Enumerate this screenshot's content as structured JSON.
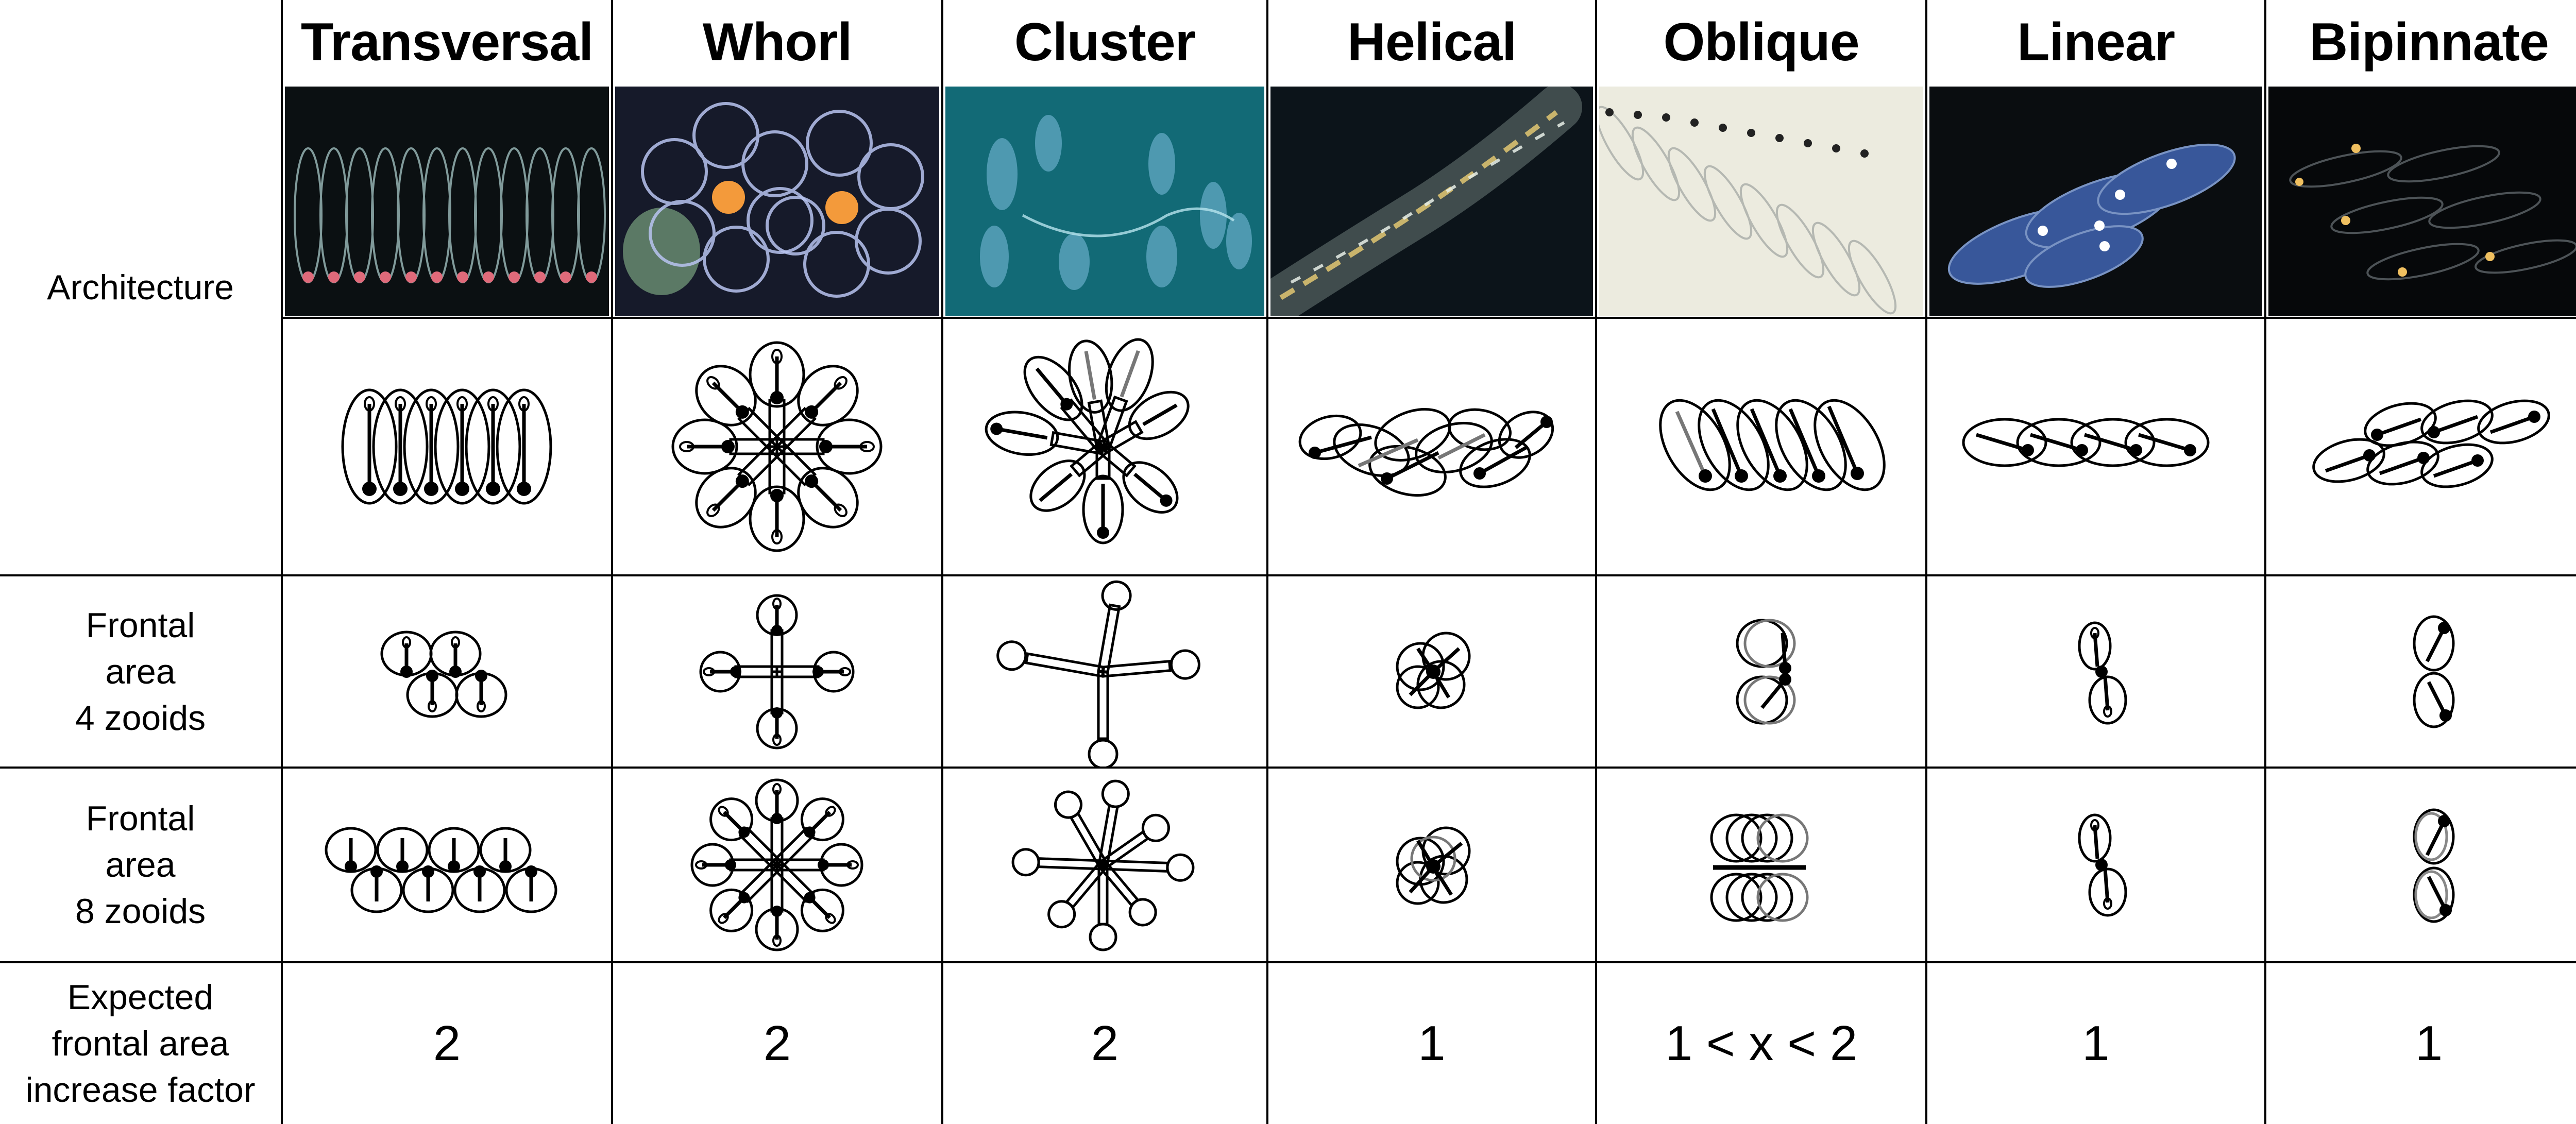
{
  "columns": [
    {
      "header": "Transversal",
      "factor": "2"
    },
    {
      "header": "Whorl",
      "factor": "2"
    },
    {
      "header": "Cluster",
      "factor": "2"
    },
    {
      "header": "Helical",
      "factor": "1"
    },
    {
      "header": "Oblique",
      "factor": "1 < x < 2"
    },
    {
      "header": "Linear",
      "factor": "1"
    },
    {
      "header": "Bipinnate",
      "factor": "1"
    }
  ],
  "rows": {
    "architecture": [
      "Architecture"
    ],
    "frontal4": [
      "Frontal",
      "area",
      "4 zooids"
    ],
    "frontal8": [
      "Frontal",
      "area",
      "8 zooids"
    ],
    "factor": [
      "Expected",
      "frontal area",
      "increase factor"
    ]
  },
  "photo_backgrounds": [
    "#0b1012",
    "#161a2a",
    "#126a76",
    "#0c141a",
    "#ecebdf",
    "#0a0d10",
    "#06080a"
  ],
  "photo_accents": [
    "#e06a7a",
    "#f39a3b",
    "#7fc0e0",
    "#d8c070",
    "#222222",
    "#9fc0ff",
    "#f0c060"
  ],
  "icons": [
    "salp-photo",
    "zooid-diagram"
  ]
}
